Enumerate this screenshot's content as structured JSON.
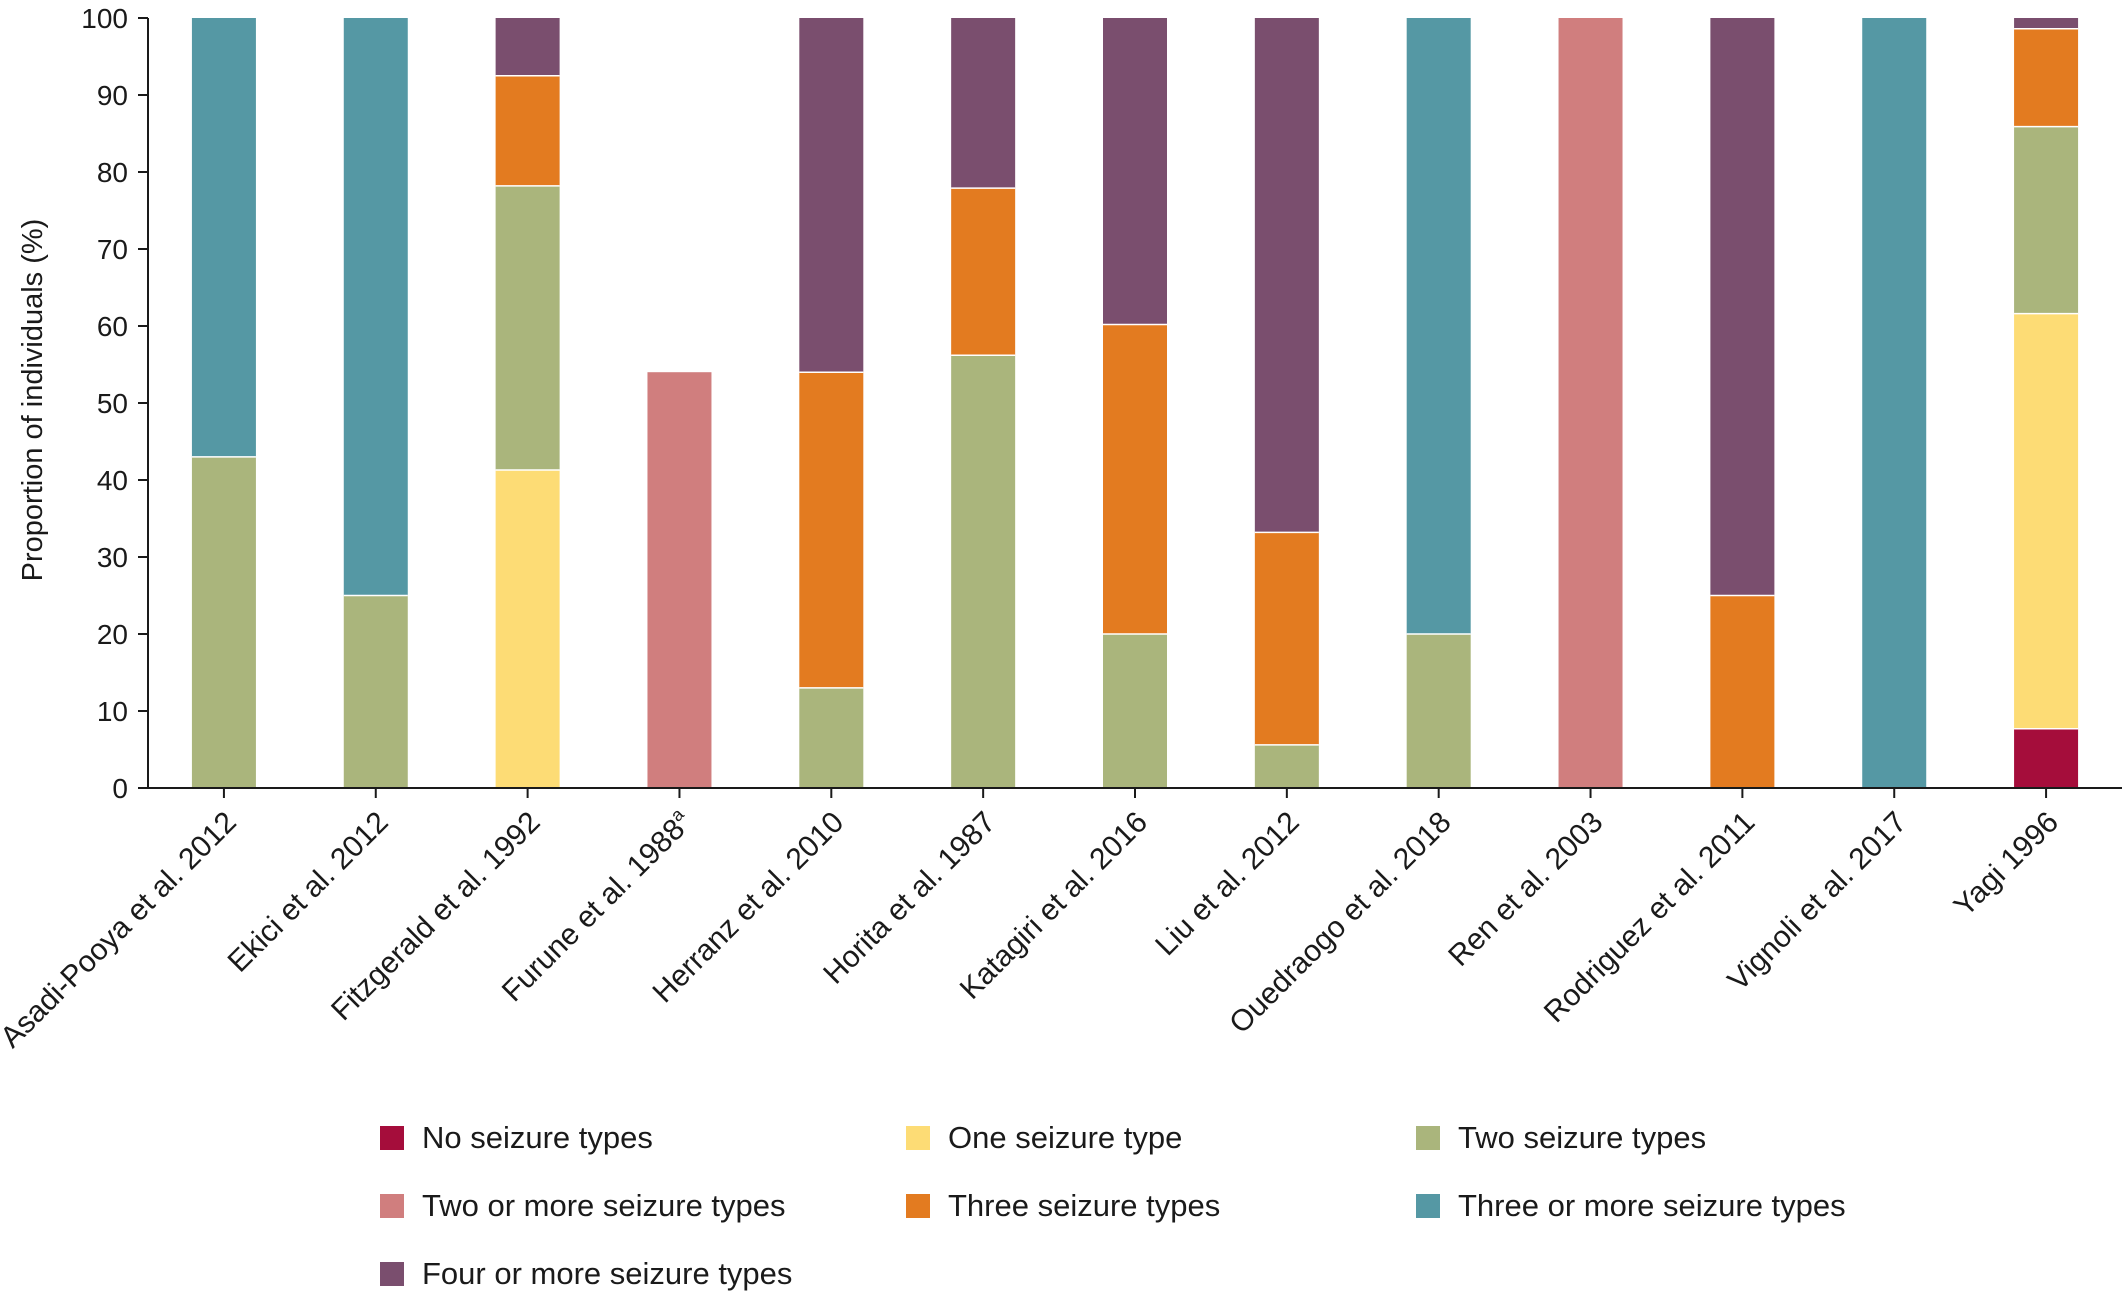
{
  "chart_data": {
    "type": "bar",
    "stacked": true,
    "title": "",
    "xlabel": "",
    "ylabel": "Proportion of individuals (%)",
    "ylim": [
      0,
      100
    ],
    "yticks": [
      0,
      10,
      20,
      30,
      40,
      50,
      60,
      70,
      80,
      90,
      100
    ],
    "grid": false,
    "legend_position": "bottom",
    "categories": [
      "Asadi-Pooya et al. 2012",
      "Ekici et al. 2012",
      "Fitzgerald et al. 1992",
      "Furune et al. 1988",
      "Herranz et al. 2010",
      "Horita et al. 1987",
      "Katagiri et al. 2016",
      "Liu et al. 2012",
      "Ouedraogo et al. 2018",
      "Ren et al. 2003",
      "Rodriguez et al. 2011",
      "Vignoli et al. 2017",
      "Yagi 1996"
    ],
    "category_superscripts": [
      "",
      "",
      "",
      "a",
      "",
      "",
      "",
      "",
      "",
      "",
      "",
      "",
      ""
    ],
    "series": [
      {
        "name": "No seizure types",
        "color": "#a50d3b",
        "values": [
          0,
          0,
          0,
          0,
          0,
          0,
          0,
          0,
          0,
          0,
          0,
          0,
          7.7
        ]
      },
      {
        "name": "One seizure type",
        "color": "#fddc75",
        "values": [
          0,
          0,
          41.3,
          0,
          0,
          0,
          0,
          0,
          0,
          0,
          0,
          0,
          53.9
        ]
      },
      {
        "name": "Two seizure types",
        "color": "#aab57c",
        "values": [
          43,
          25,
          36.9,
          0,
          13.0,
          56.2,
          20,
          5.6,
          20,
          0,
          0,
          0,
          24.3
        ]
      },
      {
        "name": "Two or more seizure types",
        "color": "#d07e7e",
        "values": [
          0,
          0,
          0,
          54,
          0,
          0,
          0,
          0,
          0,
          100,
          0,
          0,
          0
        ]
      },
      {
        "name": "Three seizure types",
        "color": "#e37b20",
        "values": [
          0,
          0,
          14.3,
          0,
          41.0,
          21.7,
          40.2,
          27.6,
          0,
          0,
          25,
          0,
          12.7
        ]
      },
      {
        "name": "Three or more seizure types",
        "color": "#5598a4",
        "values": [
          57,
          75,
          0,
          0,
          0,
          0,
          0,
          0,
          80,
          0,
          0,
          100,
          0
        ]
      },
      {
        "name": "Four or more seizure types",
        "color": "#7a4e6e",
        "values": [
          0,
          0,
          7.5,
          0,
          46.0,
          22.1,
          39.8,
          66.8,
          0,
          0,
          75,
          0,
          1.4
        ]
      }
    ]
  }
}
